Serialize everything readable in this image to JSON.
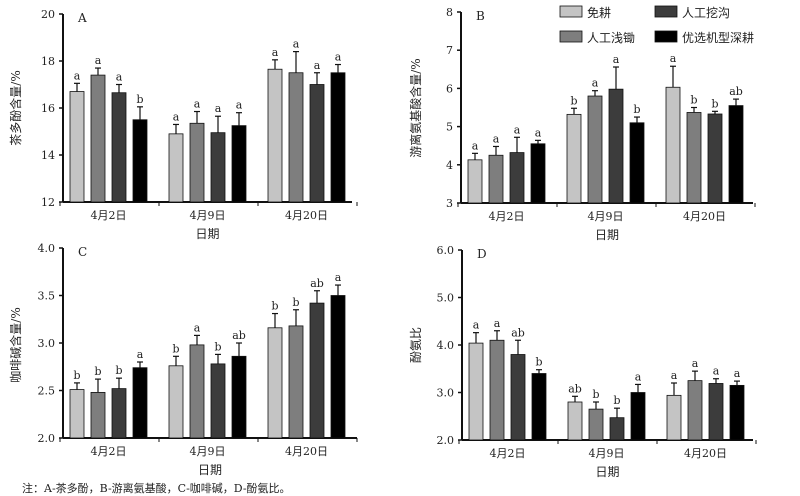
{
  "legend": [
    {
      "label": "免耕",
      "color": "#c4c4c4"
    },
    {
      "label": "人工挖沟",
      "color": "#3c3c3c"
    },
    {
      "label": "人工浅锄",
      "color": "#7e7e7e"
    },
    {
      "label": "优选机型深耕",
      "color": "#000000"
    }
  ],
  "series_order": [
    "免耕",
    "人工浅锄",
    "人工挖沟",
    "优选机型深耕"
  ],
  "series_colors": [
    "#c4c4c4",
    "#7e7e7e",
    "#3c3c3c",
    "#000000"
  ],
  "footnote": "注：A-茶多酚，B-游离氨基酸，C-咖啡碱，D-酚氨比。",
  "chart_data": [
    {
      "type": "bar",
      "panel": "A",
      "ylabel": "茶多酚含量/%",
      "xlabel": "日期",
      "categories": [
        "4月2日",
        "4月9日",
        "4月20日"
      ],
      "ylim": [
        12,
        20
      ],
      "yticks": [
        "12",
        "14",
        "16",
        "18",
        "20"
      ],
      "series": [
        {
          "name": "免耕",
          "values": [
            16.7,
            14.9,
            17.65
          ],
          "err_top": [
            17.05,
            15.3,
            18.05
          ],
          "letters": [
            "a",
            "a",
            "a"
          ]
        },
        {
          "name": "人工浅锄",
          "values": [
            17.4,
            15.35,
            17.5
          ],
          "err_top": [
            17.7,
            15.85,
            18.4
          ],
          "letters": [
            "a",
            "a",
            "a"
          ]
        },
        {
          "name": "人工挖沟",
          "values": [
            16.65,
            14.95,
            17.0
          ],
          "err_top": [
            17.0,
            15.65,
            17.5
          ],
          "letters": [
            "a",
            "a",
            "a"
          ]
        },
        {
          "name": "优选机型深耕",
          "values": [
            15.5,
            15.25,
            17.5
          ],
          "err_top": [
            16.05,
            15.8,
            17.85
          ],
          "letters": [
            "b",
            "a",
            "a"
          ]
        }
      ]
    },
    {
      "type": "bar",
      "panel": "B",
      "ylabel": "游离氨基酸含量/%",
      "xlabel": "日期",
      "categories": [
        "4月2日",
        "4月9日",
        "4月20日"
      ],
      "ylim": [
        3,
        8
      ],
      "yticks": [
        "3",
        "4",
        "5",
        "6",
        "7",
        "8"
      ],
      "series": [
        {
          "name": "免耕",
          "values": [
            4.13,
            5.32,
            6.03
          ],
          "err_top": [
            4.3,
            5.48,
            6.58
          ],
          "letters": [
            "a",
            "b",
            "a"
          ]
        },
        {
          "name": "人工浅锄",
          "values": [
            4.25,
            5.8,
            5.37
          ],
          "err_top": [
            4.48,
            5.94,
            5.5
          ],
          "letters": [
            "a",
            "a",
            "b"
          ]
        },
        {
          "name": "人工挖沟",
          "values": [
            4.32,
            5.98,
            5.33
          ],
          "err_top": [
            4.72,
            6.56,
            5.4
          ],
          "letters": [
            "a",
            "a",
            "b"
          ]
        },
        {
          "name": "优选机型深耕",
          "values": [
            4.55,
            5.1,
            5.55
          ],
          "err_top": [
            4.64,
            5.25,
            5.72
          ],
          "letters": [
            "a",
            "b",
            "ab"
          ]
        }
      ]
    },
    {
      "type": "bar",
      "panel": "C",
      "ylabel": "咖啡碱含量/%",
      "xlabel": "日期",
      "categories": [
        "4月2日",
        "4月9日",
        "4月20日"
      ],
      "ylim": [
        2.0,
        4.0
      ],
      "yticks": [
        "2.0",
        "2.5",
        "3.0",
        "3.5",
        "4.0"
      ],
      "series": [
        {
          "name": "免耕",
          "values": [
            2.51,
            2.76,
            3.16
          ],
          "err_top": [
            2.58,
            2.86,
            3.31
          ],
          "letters": [
            "b",
            "b",
            "b"
          ]
        },
        {
          "name": "人工浅锄",
          "values": [
            2.48,
            2.98,
            3.18
          ],
          "err_top": [
            2.62,
            3.08,
            3.35
          ],
          "letters": [
            "b",
            "a",
            "b"
          ]
        },
        {
          "name": "人工挖沟",
          "values": [
            2.52,
            2.78,
            3.42
          ],
          "err_top": [
            2.63,
            2.88,
            3.55
          ],
          "letters": [
            "b",
            "b",
            "ab"
          ]
        },
        {
          "name": "优选机型深耕",
          "values": [
            2.74,
            2.86,
            3.5
          ],
          "err_top": [
            2.8,
            3.0,
            3.61
          ],
          "letters": [
            "a",
            "ab",
            "a"
          ]
        }
      ]
    },
    {
      "type": "bar",
      "panel": "D",
      "ylabel": "酚氨比",
      "xlabel": "日期",
      "categories": [
        "4月2日",
        "4月9日",
        "4月20日"
      ],
      "ylim": [
        2.0,
        6.0
      ],
      "yticks": [
        "2.0",
        "3.0",
        "4.0",
        "5.0",
        "6.0"
      ],
      "series": [
        {
          "name": "免耕",
          "values": [
            4.04,
            2.8,
            2.94
          ],
          "err_top": [
            4.26,
            2.92,
            3.2
          ],
          "letters": [
            "a",
            "ab",
            "a"
          ]
        },
        {
          "name": "人工浅锄",
          "values": [
            4.1,
            2.65,
            3.25
          ],
          "err_top": [
            4.3,
            2.8,
            3.45
          ],
          "letters": [
            "a",
            "b",
            "a"
          ]
        },
        {
          "name": "人工挖沟",
          "values": [
            3.8,
            2.47,
            3.19
          ],
          "err_top": [
            4.1,
            2.67,
            3.29
          ],
          "letters": [
            "ab",
            "b",
            "a"
          ]
        },
        {
          "name": "优选机型深耕",
          "values": [
            3.4,
            3.0,
            3.15
          ],
          "err_top": [
            3.48,
            3.17,
            3.24
          ],
          "letters": [
            "b",
            "a",
            "a"
          ]
        }
      ]
    }
  ]
}
